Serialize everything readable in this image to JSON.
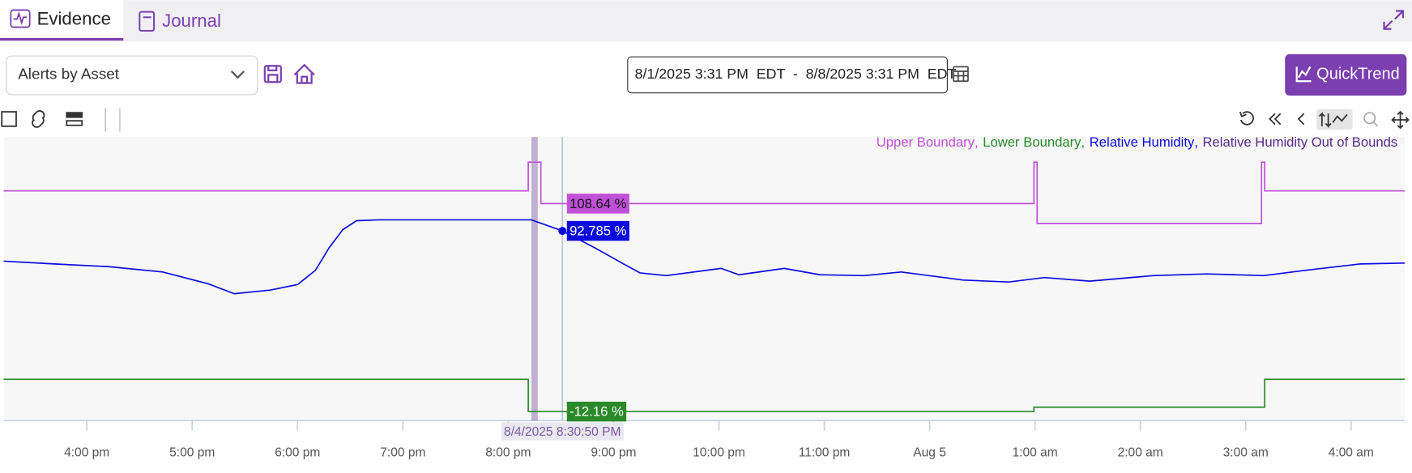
{
  "tabs": [
    "Evidence",
    "Journal"
  ],
  "toolbar": {
    "dropdown": "Alerts by Asset",
    "date_range": "8/1/2025 3:31 PM  EDT  -  8/8/2025 3:31 PM  EDT",
    "button": "QuickTrend"
  },
  "chart_data": {
    "type": "line",
    "xlim": [
      15.21,
      28.51
    ],
    "ylim": [
      -17.4,
      147.3
    ],
    "xticks": [
      {
        "value": 16,
        "label": "4:00 pm"
      },
      {
        "value": 17,
        "label": "5:00 pm"
      },
      {
        "value": 18,
        "label": "6:00 pm"
      },
      {
        "value": 19,
        "label": "7:00 pm"
      },
      {
        "value": 20,
        "label": "8:00 pm"
      },
      {
        "value": 21,
        "label": "9:00 pm"
      },
      {
        "value": 22,
        "label": "10:00 pm"
      },
      {
        "value": 23,
        "label": "11:00 pm"
      },
      {
        "value": 24,
        "label": "Aug 5"
      },
      {
        "value": 25,
        "label": "1:00 am"
      },
      {
        "value": 26,
        "label": "2:00 am"
      },
      {
        "value": 27,
        "label": "3:00 am"
      },
      {
        "value": 28,
        "label": "4:00 am"
      }
    ],
    "legend_separator": ",",
    "cursor": {
      "x": 20.514,
      "label": "8/4/2025 8:30:50 PM"
    },
    "series": [
      {
        "name": "Upper Boundary",
        "color": "#c050d8",
        "x": [
          15.21,
          20.19,
          20.19,
          20.31,
          20.31,
          24.99,
          24.99,
          25.02,
          25.02,
          27.15,
          27.15,
          27.18,
          27.18,
          28.51
        ],
        "values": [
          116,
          116,
          132.7,
          132.7,
          108.64,
          108.64,
          132.7,
          132.7,
          97.1,
          97.1,
          132.7,
          132.7,
          116,
          116
        ],
        "cursor_value": 108.64,
        "cursor_label": "108.64 %"
      },
      {
        "name": "Lower Boundary",
        "color": "#2a8a2a",
        "x": [
          15.21,
          20.19,
          20.19,
          24.99,
          24.99,
          27.18,
          27.18,
          28.51
        ],
        "values": [
          6.6,
          6.6,
          -12.16,
          -12.16,
          -9.6,
          -9.6,
          6.6,
          6.6
        ],
        "cursor_value": -12.16,
        "cursor_label": "-12.16 %"
      },
      {
        "name": "Relative Humidity",
        "color": "#0a0ae0",
        "x": [
          15.21,
          15.69,
          16.21,
          16.72,
          17.15,
          17.4,
          17.74,
          18.0,
          18.17,
          18.3,
          18.43,
          18.56,
          18.77,
          20.22,
          20.514,
          20.82,
          21.08,
          21.25,
          21.5,
          22.02,
          22.19,
          22.62,
          22.96,
          23.38,
          23.73,
          24.32,
          24.75,
          25.09,
          25.52,
          26.12,
          26.63,
          27.17,
          27.57,
          28.09,
          28.51
        ],
        "values": [
          75.2,
          73.6,
          72.0,
          68.9,
          62.1,
          56.3,
          58.4,
          61.6,
          69.9,
          83.0,
          93.5,
          98.7,
          99.2,
          99.2,
          92.785,
          83.0,
          74.1,
          68.4,
          66.8,
          71.0,
          67.3,
          71.0,
          67.3,
          66.8,
          68.9,
          64.2,
          63.1,
          65.7,
          63.6,
          66.8,
          67.8,
          66.8,
          69.9,
          73.6,
          74.1
        ],
        "cursor_value": 92.785,
        "cursor_label": "92.785 %"
      },
      {
        "name": "Relative Humidity Out of Bounds",
        "color": "#5a2a8a",
        "ranges": [
          [
            20.22,
            20.28
          ]
        ]
      }
    ]
  }
}
